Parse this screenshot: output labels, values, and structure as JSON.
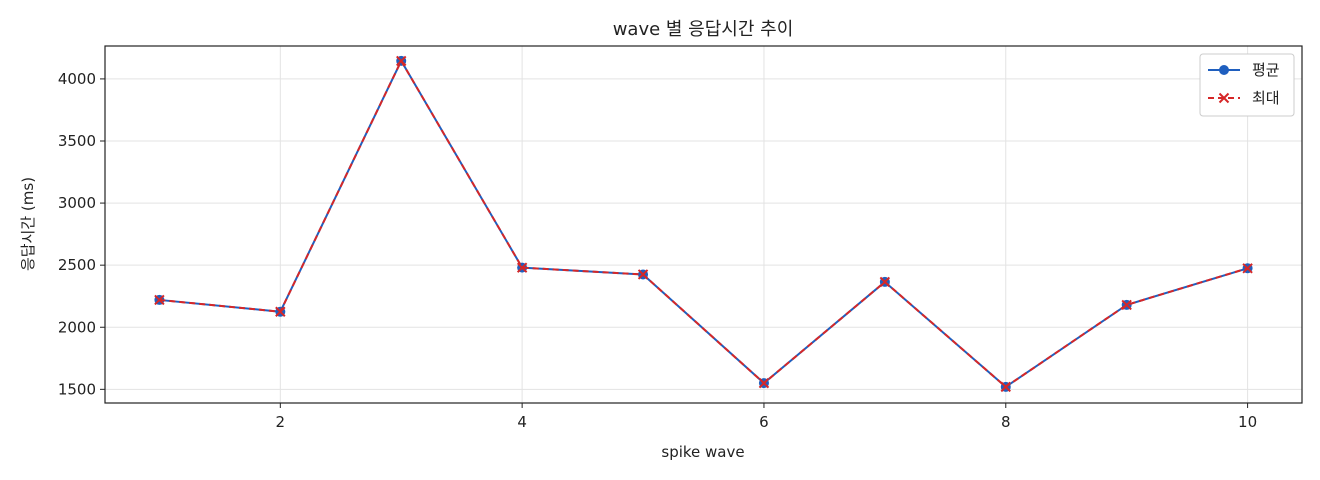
{
  "chart_data": {
    "type": "line",
    "title": "wave 별 응답시간 추이",
    "xlabel": "spike wave",
    "ylabel": "응답시간 (ms)",
    "x": [
      1,
      2,
      3,
      4,
      5,
      6,
      7,
      8,
      9,
      10
    ],
    "xlim": [
      0.55,
      10.45
    ],
    "ylim": [
      1390,
      4265
    ],
    "xticks": [
      2,
      4,
      6,
      8,
      10
    ],
    "yticks": [
      1500,
      2000,
      2500,
      3000,
      3500,
      4000
    ],
    "grid": true,
    "legend_position": "top-right",
    "series": [
      {
        "name": "평균",
        "values": [
          2220,
          2125,
          4145,
          2480,
          2425,
          1550,
          2365,
          1520,
          2180,
          2475
        ],
        "color": "#1f5fbf",
        "line_style": "solid",
        "marker": "circle"
      },
      {
        "name": "최대",
        "values": [
          2220,
          2125,
          4145,
          2480,
          2425,
          1550,
          2365,
          1520,
          2180,
          2475
        ],
        "color": "#d62728",
        "line_style": "dashed",
        "marker": "x"
      }
    ]
  }
}
